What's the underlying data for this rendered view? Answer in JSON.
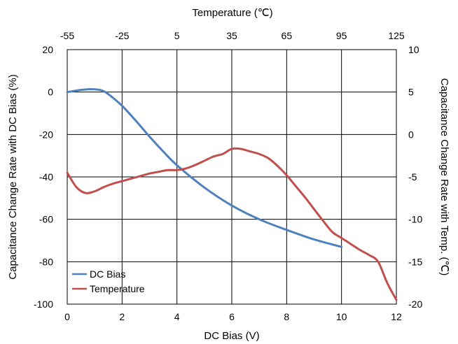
{
  "chart_data": {
    "type": "line",
    "title": "",
    "x_bottom": {
      "label": "DC Bias (V)",
      "range": [
        0,
        12
      ],
      "ticks": [
        0,
        2,
        4,
        6,
        8,
        10,
        12
      ]
    },
    "x_top": {
      "label": "Temperature (℃)",
      "range": [
        -55,
        125
      ],
      "ticks": [
        -55,
        -25,
        5,
        35,
        65,
        95,
        125
      ]
    },
    "y_left": {
      "label": "Capacitance Change Rate with DC Bias (%)",
      "range": [
        -100,
        20
      ],
      "ticks": [
        20,
        0,
        -20,
        -40,
        -60,
        -80,
        -100
      ]
    },
    "y_right": {
      "label": "Capacitance Change Rate with Temp. (℃)",
      "range": [
        -20,
        10
      ],
      "ticks": [
        10,
        5,
        0,
        -5,
        -10,
        -15,
        -20
      ]
    },
    "grid": true,
    "legend_position": "bottom-left",
    "series": [
      {
        "name": "DC Bias",
        "color": "#4f81bd",
        "x_axis": "bottom",
        "y_axis": "left",
        "x": [
          0,
          0.25,
          0.5,
          0.75,
          1.0,
          1.25,
          1.5,
          2.0,
          2.5,
          3.0,
          3.5,
          4.0,
          5.0,
          6.0,
          7.0,
          8.0,
          9.0,
          10.0
        ],
        "y": [
          0,
          0.5,
          1.0,
          1.3,
          1.3,
          0.8,
          -1.0,
          -6.5,
          -13.5,
          -21,
          -28,
          -34.5,
          -45,
          -53.5,
          -60,
          -65,
          -69.5,
          -73
        ]
      },
      {
        "name": "Temperature",
        "color": "#c0504d",
        "x_axis": "top",
        "y_axis": "right",
        "x": [
          -55,
          -50,
          -45,
          -40,
          -35,
          -30,
          -25,
          -20,
          -15,
          -10,
          -5,
          0,
          5,
          10,
          15,
          20,
          25,
          30,
          35,
          40,
          45,
          50,
          55,
          60,
          65,
          70,
          75,
          80,
          85,
          90,
          95,
          100,
          105,
          110,
          115,
          120,
          125
        ],
        "y": [
          -4.5,
          -6.2,
          -6.9,
          -6.7,
          -6.2,
          -5.8,
          -5.5,
          -5.2,
          -4.9,
          -4.6,
          -4.4,
          -4.2,
          -4.2,
          -4.0,
          -3.6,
          -3.1,
          -2.6,
          -2.3,
          -1.7,
          -1.7,
          -2.0,
          -2.3,
          -2.8,
          -3.7,
          -4.8,
          -6.1,
          -7.4,
          -8.8,
          -10.2,
          -11.5,
          -12.2,
          -12.9,
          -13.6,
          -14.2,
          -15.0,
          -17.5,
          -19.5
        ]
      }
    ]
  }
}
